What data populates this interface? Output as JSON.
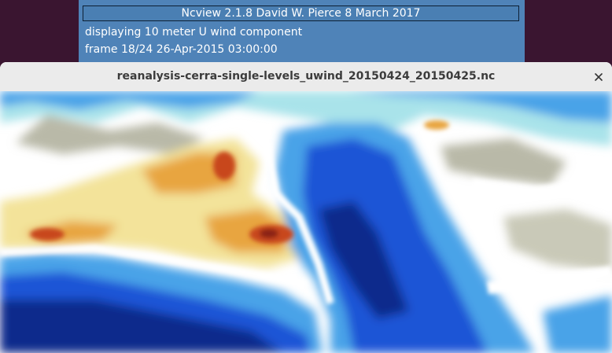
{
  "ncview": {
    "title": "Ncview 2.1.8 David W. Pierce  8 March 2017",
    "variable_text": "displaying 10 meter U wind component",
    "frame_text": "frame 18/24 26-Apr-2015 03:00:00"
  },
  "image_window": {
    "title": "reanalysis-cerra-single-levels_uwind_20150424_20150425.nc",
    "close_icon": "close-icon"
  },
  "colormap": [
    "#0a2a8c",
    "#1f55d6",
    "#4aa3e8",
    "#a9e3ea",
    "#ffffff",
    "#b9b9a8",
    "#f3e39a",
    "#e8a540",
    "#c8461e",
    "#8a2018"
  ]
}
